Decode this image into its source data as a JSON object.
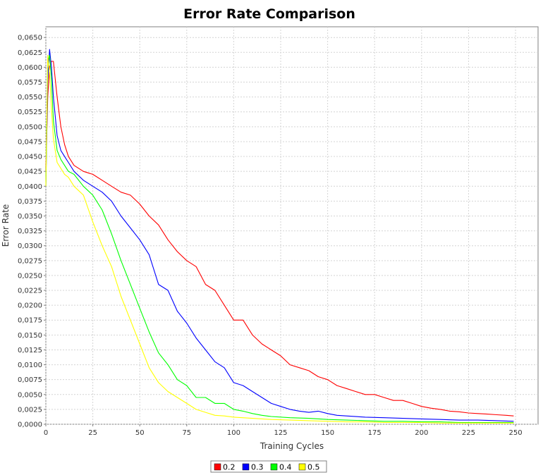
{
  "chart_data": {
    "type": "line",
    "title": "Error Rate Comparison",
    "xlabel": "Training Cycles",
    "ylabel": "Error Rate",
    "xlim": [
      0,
      262
    ],
    "ylim": [
      0,
      0.0668
    ],
    "x_ticks": [
      "0",
      "25",
      "50",
      "75",
      "100",
      "125",
      "150",
      "175",
      "200",
      "225",
      "250"
    ],
    "y_ticks": [
      "0,0000",
      "0,0025",
      "0,0050",
      "0,0075",
      "0,0100",
      "0,0125",
      "0,0150",
      "0,0175",
      "0,0200",
      "0,0225",
      "0,0250",
      "0,0275",
      "0,0300",
      "0,0325",
      "0,0350",
      "0,0375",
      "0,0400",
      "0,0425",
      "0,0450",
      "0,0475",
      "0,0500",
      "0,0525",
      "0,0550",
      "0,0575",
      "0,0600",
      "0,0625",
      "0,0650"
    ],
    "grid": true,
    "legend_position": "bottom-center",
    "series": [
      {
        "name": "0.2",
        "color": "#ff0000",
        "x": [
          0,
          1,
          2,
          3,
          4,
          6,
          8,
          10,
          12,
          15,
          20,
          25,
          30,
          35,
          40,
          45,
          50,
          55,
          60,
          65,
          70,
          75,
          80,
          85,
          90,
          95,
          100,
          105,
          110,
          115,
          120,
          125,
          130,
          135,
          140,
          145,
          150,
          155,
          160,
          165,
          170,
          175,
          180,
          185,
          190,
          195,
          200,
          205,
          210,
          215,
          220,
          225,
          230,
          235,
          240,
          245,
          249
        ],
        "y": [
          0.0425,
          0.055,
          0.06,
          0.061,
          0.061,
          0.055,
          0.05,
          0.047,
          0.045,
          0.0435,
          0.0425,
          0.042,
          0.041,
          0.04,
          0.039,
          0.0385,
          0.037,
          0.035,
          0.0335,
          0.031,
          0.029,
          0.0275,
          0.0265,
          0.0235,
          0.0225,
          0.02,
          0.0175,
          0.0175,
          0.015,
          0.0135,
          0.0125,
          0.0115,
          0.01,
          0.0095,
          0.009,
          0.008,
          0.0075,
          0.0065,
          0.006,
          0.0055,
          0.005,
          0.005,
          0.0045,
          0.004,
          0.004,
          0.0035,
          0.003,
          0.0027,
          0.0025,
          0.0022,
          0.0021,
          0.0019,
          0.0018,
          0.0017,
          0.0016,
          0.0015,
          0.0014
        ]
      },
      {
        "name": "0.3",
        "color": "#0000ff",
        "x": [
          0,
          1,
          2,
          3,
          4,
          6,
          8,
          10,
          12,
          15,
          20,
          25,
          30,
          35,
          40,
          45,
          50,
          55,
          60,
          65,
          70,
          75,
          80,
          85,
          90,
          95,
          100,
          105,
          110,
          115,
          120,
          125,
          130,
          135,
          140,
          145,
          150,
          155,
          160,
          170,
          180,
          190,
          200,
          210,
          220,
          230,
          240,
          249
        ],
        "y": [
          0.04,
          0.058,
          0.063,
          0.06,
          0.055,
          0.0485,
          0.046,
          0.045,
          0.044,
          0.0425,
          0.041,
          0.04,
          0.039,
          0.0375,
          0.035,
          0.033,
          0.031,
          0.0285,
          0.0235,
          0.0225,
          0.019,
          0.017,
          0.0145,
          0.0125,
          0.0105,
          0.0095,
          0.007,
          0.0065,
          0.0055,
          0.0045,
          0.0035,
          0.003,
          0.0025,
          0.0022,
          0.002,
          0.0022,
          0.0018,
          0.0015,
          0.0014,
          0.0012,
          0.0011,
          0.001,
          0.0009,
          0.0008,
          0.0007,
          0.0007,
          0.0006,
          0.0005
        ]
      },
      {
        "name": "0.4",
        "color": "#00ff00",
        "x": [
          0,
          1,
          2,
          3,
          4,
          6,
          8,
          10,
          12,
          15,
          20,
          25,
          30,
          35,
          40,
          45,
          50,
          55,
          60,
          65,
          70,
          75,
          80,
          85,
          90,
          95,
          100,
          105,
          110,
          115,
          120,
          130,
          140,
          150,
          160,
          170,
          180,
          190,
          200,
          210,
          220,
          230,
          240,
          249
        ],
        "y": [
          0.04,
          0.061,
          0.062,
          0.058,
          0.051,
          0.046,
          0.0445,
          0.0435,
          0.0425,
          0.042,
          0.04,
          0.0385,
          0.036,
          0.032,
          0.0275,
          0.0235,
          0.0195,
          0.0155,
          0.012,
          0.01,
          0.0075,
          0.0065,
          0.0045,
          0.0045,
          0.0035,
          0.0035,
          0.0025,
          0.0022,
          0.0018,
          0.0015,
          0.0013,
          0.0011,
          0.001,
          0.0008,
          0.0007,
          0.0006,
          0.0005,
          0.0005,
          0.0004,
          0.0004,
          0.0003,
          0.0003,
          0.0003,
          0.0003
        ]
      },
      {
        "name": "0.5",
        "color": "#ffff00",
        "x": [
          0,
          1,
          2,
          3,
          4,
          6,
          8,
          10,
          12,
          15,
          20,
          25,
          30,
          35,
          40,
          45,
          50,
          55,
          60,
          65,
          70,
          75,
          80,
          85,
          90,
          95,
          100,
          110,
          120,
          130,
          140,
          150,
          160,
          170,
          180,
          190,
          200,
          210,
          220,
          230,
          240,
          249
        ],
        "y": [
          0.04,
          0.062,
          0.059,
          0.053,
          0.048,
          0.044,
          0.043,
          0.042,
          0.0415,
          0.04,
          0.0385,
          0.034,
          0.03,
          0.0265,
          0.0215,
          0.0175,
          0.0135,
          0.0095,
          0.007,
          0.0055,
          0.0045,
          0.0035,
          0.0025,
          0.002,
          0.0015,
          0.0014,
          0.0012,
          0.001,
          0.0008,
          0.0007,
          0.0006,
          0.0005,
          0.0004,
          0.0004,
          0.0003,
          0.0003,
          0.0003,
          0.0002,
          0.0002,
          0.0002,
          0.0002,
          0.0002
        ]
      }
    ]
  }
}
